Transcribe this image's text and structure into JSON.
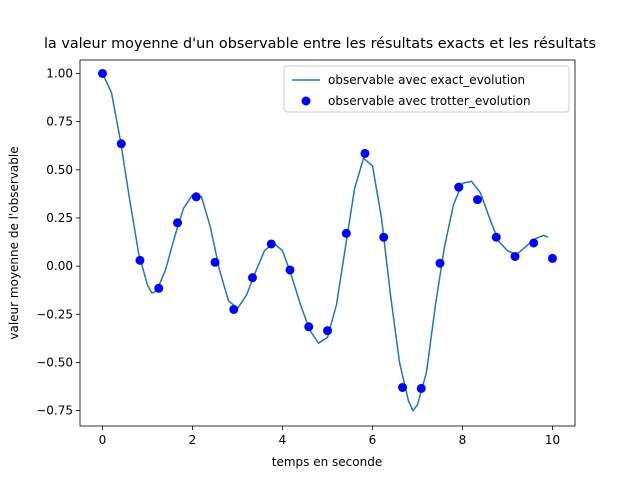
{
  "chart_data": {
    "type": "line",
    "title": "la valeur moyenne d'un observable entre les résultats exacts et les résultats",
    "xlabel": "temps en seconde",
    "ylabel": "valeur moyenne de l'observable",
    "xlim": [
      -0.5,
      10.5
    ],
    "ylim": [
      -0.83,
      1.07
    ],
    "xticks": [
      0,
      2,
      4,
      6,
      8,
      10
    ],
    "yticks": [
      {
        "value": -0.75,
        "label": "−0.75"
      },
      {
        "value": -0.5,
        "label": "−0.50"
      },
      {
        "value": -0.25,
        "label": "−0.25"
      },
      {
        "value": 0,
        "label": "0.00"
      },
      {
        "value": 0.25,
        "label": "0.25"
      },
      {
        "value": 0.5,
        "label": "0.50"
      },
      {
        "value": 0.75,
        "label": "0.75"
      },
      {
        "value": 1,
        "label": "1.00"
      }
    ],
    "legend": "upper right",
    "series": [
      {
        "name": "observable avec exact_evolution",
        "type": "line",
        "color": "#1f77b4",
        "x": [
          0,
          0.2,
          0.4,
          0.6,
          0.8,
          1.0,
          1.1,
          1.2,
          1.4,
          1.6,
          1.8,
          2.0,
          2.2,
          2.4,
          2.6,
          2.8,
          3.0,
          3.2,
          3.4,
          3.6,
          3.8,
          4.0,
          4.2,
          4.4,
          4.6,
          4.8,
          5.0,
          5.2,
          5.4,
          5.6,
          5.8,
          6.0,
          6.2,
          6.4,
          6.6,
          6.8,
          6.9,
          7.0,
          7.2,
          7.4,
          7.6,
          7.8,
          8.0,
          8.2,
          8.4,
          8.6,
          8.8,
          9.0,
          9.2,
          9.4,
          9.6,
          9.8,
          9.9
        ],
        "values": [
          1.0,
          0.9,
          0.65,
          0.35,
          0.07,
          -0.1,
          -0.14,
          -0.13,
          -0.02,
          0.15,
          0.3,
          0.37,
          0.36,
          0.2,
          -0.02,
          -0.18,
          -0.22,
          -0.15,
          -0.03,
          0.08,
          0.12,
          0.08,
          -0.05,
          -0.2,
          -0.33,
          -0.4,
          -0.37,
          -0.2,
          0.1,
          0.4,
          0.56,
          0.52,
          0.25,
          -0.15,
          -0.5,
          -0.7,
          -0.75,
          -0.72,
          -0.55,
          -0.2,
          0.1,
          0.32,
          0.43,
          0.44,
          0.38,
          0.25,
          0.13,
          0.08,
          0.06,
          0.1,
          0.14,
          0.16,
          0.15
        ]
      },
      {
        "name": "observable avec trotter_evolution",
        "type": "scatter",
        "color": "#0000ff",
        "x": [
          0,
          0.417,
          0.833,
          1.25,
          1.667,
          2.083,
          2.5,
          2.917,
          3.333,
          3.75,
          4.167,
          4.583,
          5.0,
          5.417,
          5.833,
          6.25,
          6.667,
          7.083,
          7.5,
          7.917,
          8.333,
          8.75,
          9.167,
          9.583,
          10
        ],
        "values": [
          1.0,
          0.635,
          0.03,
          -0.115,
          0.225,
          0.36,
          0.02,
          -0.225,
          -0.06,
          0.115,
          -0.02,
          -0.315,
          -0.335,
          0.17,
          0.585,
          0.15,
          -0.63,
          -0.635,
          0.015,
          0.41,
          0.345,
          0.15,
          0.05,
          0.12,
          0.04
        ]
      }
    ]
  }
}
